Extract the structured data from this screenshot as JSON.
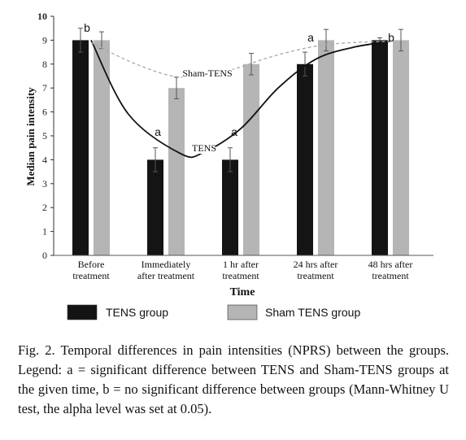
{
  "chart_data": {
    "type": "bar",
    "categories": [
      [
        "Before",
        "treatment"
      ],
      [
        "Immediately",
        "after treatment"
      ],
      [
        "1 hr after",
        "treatment"
      ],
      [
        "24 hrs after",
        "treatment"
      ],
      [
        "48 hrs after",
        "treatment"
      ]
    ],
    "series": [
      {
        "name": "TENS group",
        "color": "#141414",
        "values": [
          9,
          4,
          4,
          8,
          9
        ],
        "errors": [
          0.5,
          0.5,
          0.5,
          0.5,
          0.1
        ]
      },
      {
        "name": "Sham TENS group",
        "color": "#b5b5b5",
        "values": [
          9,
          7,
          8,
          9,
          9
        ],
        "errors": [
          0.35,
          0.45,
          0.45,
          0.45,
          0.45
        ]
      }
    ],
    "annotations": [
      "b",
      "a",
      "a",
      "a",
      "b"
    ],
    "curves": [
      {
        "label": "TENS",
        "style": "solid",
        "color": "#111111",
        "points": [
          [
            0,
            9
          ],
          [
            0.5,
            5.9
          ],
          [
            1.2,
            4.25
          ],
          [
            1.5,
            4.3
          ],
          [
            2.0,
            5.3
          ],
          [
            2.5,
            7.0
          ],
          [
            3.0,
            8.2
          ],
          [
            3.5,
            8.7
          ],
          [
            4.0,
            8.95
          ]
        ]
      },
      {
        "label": "Sham-TENS",
        "style": "dashed",
        "color": "#aaaaaa",
        "points": [
          [
            0,
            8.9
          ],
          [
            0.6,
            8.0
          ],
          [
            1.2,
            7.45
          ],
          [
            1.8,
            7.7
          ],
          [
            2.4,
            8.3
          ],
          [
            3.0,
            8.75
          ],
          [
            3.5,
            8.9
          ],
          [
            4.0,
            8.95
          ]
        ]
      }
    ],
    "ylabel": "Median pain intensity",
    "xlabel": "Time",
    "ylim": [
      0,
      10
    ],
    "yticks": [
      0,
      1,
      2,
      3,
      4,
      5,
      6,
      7,
      8,
      9,
      10
    ],
    "grid": false,
    "legend": "bottom"
  },
  "caption": "Fig. 2. Temporal differences in pain intensities (NPRS) between the groups. Legend: a = significant difference between TENS and Sham-TENS groups at the given time, b = no significant difference between groups (Mann-Whitney U test, the alpha level was set at 0.05)."
}
